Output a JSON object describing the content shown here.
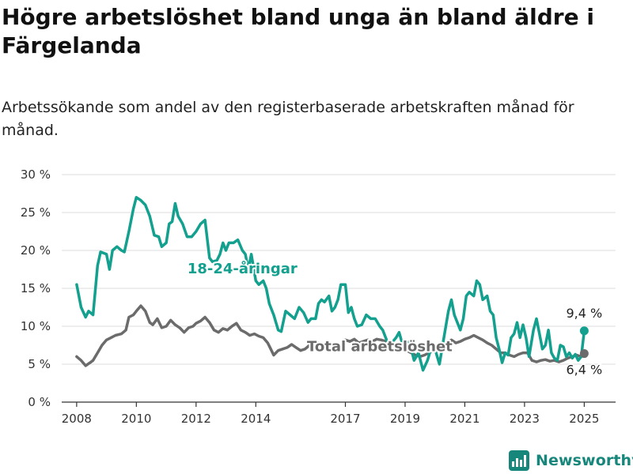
{
  "header": {
    "title": "Högre arbetslöshet bland unga än bland äldre i Färgelanda",
    "subtitle": "Arbetssökande som andel av den registerbaserade arbetskraften månad för månad."
  },
  "brand": {
    "name": "Newsworthy",
    "logo_icon": "bar-chart-logo-icon"
  },
  "colors": {
    "youth": "#13a08e",
    "total": "#6b6b6b",
    "grid": "#dddddd",
    "axis": "#333333"
  },
  "chart_data": {
    "type": "line",
    "title": "Högre arbetslöshet bland unga än bland äldre i Färgelanda",
    "subtitle": "Arbetssökande som andel av den registerbaserade arbetskraften månad för månad.",
    "xlabel": "",
    "ylabel": "",
    "xlim": [
      2007.5,
      2026.05
    ],
    "ylim": [
      0,
      30
    ],
    "yticks": [
      0,
      5,
      10,
      15,
      20,
      25,
      30
    ],
    "ytick_labels": [
      "0 %",
      "5 %",
      "10 %",
      "15 %",
      "20 %",
      "25 %",
      "30 %"
    ],
    "xticks": [
      2008,
      2010,
      2012,
      2014,
      2017,
      2019,
      2021,
      2023,
      2025
    ],
    "xtick_labels": [
      "2008",
      "2010",
      "2012",
      "2014",
      "2017",
      "2019",
      "2021",
      "2023",
      "2025"
    ],
    "grid": true,
    "series": [
      {
        "name": "18-24-åringar",
        "label_position": [
          2013.55,
          17.0
        ],
        "end_label": "9,4 %",
        "points": [
          [
            2008.0,
            15.5
          ],
          [
            2008.15,
            12.5
          ],
          [
            2008.3,
            11.2
          ],
          [
            2008.4,
            12.0
          ],
          [
            2008.55,
            11.5
          ],
          [
            2008.7,
            18.0
          ],
          [
            2008.8,
            19.8
          ],
          [
            2009.0,
            19.5
          ],
          [
            2009.1,
            17.5
          ],
          [
            2009.2,
            20.0
          ],
          [
            2009.35,
            20.5
          ],
          [
            2009.5,
            20.0
          ],
          [
            2009.6,
            19.8
          ],
          [
            2009.75,
            22.5
          ],
          [
            2009.9,
            25.5
          ],
          [
            2010.0,
            27.0
          ],
          [
            2010.15,
            26.6
          ],
          [
            2010.3,
            26.0
          ],
          [
            2010.45,
            24.5
          ],
          [
            2010.6,
            22.0
          ],
          [
            2010.75,
            21.8
          ],
          [
            2010.85,
            20.5
          ],
          [
            2011.0,
            21.0
          ],
          [
            2011.1,
            23.5
          ],
          [
            2011.2,
            23.8
          ],
          [
            2011.3,
            26.2
          ],
          [
            2011.4,
            24.5
          ],
          [
            2011.55,
            23.5
          ],
          [
            2011.7,
            21.8
          ],
          [
            2011.85,
            21.8
          ],
          [
            2012.0,
            22.5
          ],
          [
            2012.15,
            23.5
          ],
          [
            2012.3,
            24.0
          ],
          [
            2012.45,
            19.0
          ],
          [
            2012.55,
            18.5
          ],
          [
            2012.7,
            18.7
          ],
          [
            2012.8,
            19.5
          ],
          [
            2012.9,
            21.0
          ],
          [
            2013.0,
            20.0
          ],
          [
            2013.1,
            21.0
          ],
          [
            2013.25,
            21.0
          ],
          [
            2013.4,
            21.4
          ],
          [
            2013.55,
            20.0
          ],
          [
            2013.65,
            19.5
          ],
          [
            2013.75,
            17.5
          ],
          [
            2013.85,
            19.5
          ],
          [
            2014.0,
            16.0
          ],
          [
            2014.1,
            15.5
          ],
          [
            2014.25,
            16.0
          ],
          [
            2014.35,
            15.0
          ],
          [
            2014.45,
            13.0
          ],
          [
            2014.6,
            11.5
          ],
          [
            2014.75,
            9.5
          ],
          [
            2014.85,
            9.3
          ],
          [
            2015.0,
            12.0
          ],
          [
            2015.15,
            11.5
          ],
          [
            2015.3,
            11.0
          ],
          [
            2015.45,
            12.5
          ],
          [
            2015.6,
            11.8
          ],
          [
            2015.75,
            10.5
          ],
          [
            2015.85,
            11.0
          ],
          [
            2016.0,
            11.0
          ],
          [
            2016.1,
            13.0
          ],
          [
            2016.2,
            13.5
          ],
          [
            2016.3,
            13.2
          ],
          [
            2016.45,
            14.0
          ],
          [
            2016.55,
            12.0
          ],
          [
            2016.65,
            12.5
          ],
          [
            2016.75,
            13.5
          ],
          [
            2016.85,
            15.5
          ],
          [
            2017.0,
            15.5
          ],
          [
            2017.1,
            11.8
          ],
          [
            2017.2,
            12.5
          ],
          [
            2017.3,
            11.0
          ],
          [
            2017.4,
            10.0
          ],
          [
            2017.55,
            10.2
          ],
          [
            2017.7,
            11.5
          ],
          [
            2017.85,
            11.0
          ],
          [
            2018.0,
            11.0
          ],
          [
            2018.15,
            10.0
          ],
          [
            2018.25,
            9.5
          ],
          [
            2018.4,
            8.0
          ],
          [
            2018.55,
            7.8
          ],
          [
            2018.7,
            8.5
          ],
          [
            2018.8,
            9.2
          ],
          [
            2018.9,
            7.8
          ],
          [
            2019.0,
            7.5
          ],
          [
            2019.15,
            8.0
          ],
          [
            2019.3,
            5.5
          ],
          [
            2019.45,
            6.5
          ],
          [
            2019.6,
            4.2
          ],
          [
            2019.75,
            5.5
          ],
          [
            2019.9,
            7.5
          ],
          [
            2020.0,
            7.0
          ],
          [
            2020.15,
            5.0
          ],
          [
            2020.3,
            8.5
          ],
          [
            2020.45,
            12.0
          ],
          [
            2020.55,
            13.5
          ],
          [
            2020.65,
            11.5
          ],
          [
            2020.75,
            10.5
          ],
          [
            2020.85,
            9.5
          ],
          [
            2020.95,
            11.0
          ],
          [
            2021.05,
            14.0
          ],
          [
            2021.15,
            14.5
          ],
          [
            2021.3,
            14.0
          ],
          [
            2021.4,
            16.0
          ],
          [
            2021.5,
            15.5
          ],
          [
            2021.6,
            13.5
          ],
          [
            2021.75,
            14.0
          ],
          [
            2021.85,
            12.0
          ],
          [
            2021.95,
            11.5
          ],
          [
            2022.05,
            8.5
          ],
          [
            2022.15,
            7.0
          ],
          [
            2022.25,
            5.2
          ],
          [
            2022.35,
            6.5
          ],
          [
            2022.45,
            6.2
          ],
          [
            2022.55,
            8.5
          ],
          [
            2022.65,
            9.0
          ],
          [
            2022.75,
            10.5
          ],
          [
            2022.85,
            8.5
          ],
          [
            2022.95,
            10.2
          ],
          [
            2023.05,
            8.5
          ],
          [
            2023.15,
            6.0
          ],
          [
            2023.3,
            9.5
          ],
          [
            2023.4,
            11.0
          ],
          [
            2023.5,
            9.0
          ],
          [
            2023.6,
            7.0
          ],
          [
            2023.7,
            7.5
          ],
          [
            2023.8,
            9.5
          ],
          [
            2023.9,
            6.5
          ],
          [
            2024.0,
            5.8
          ],
          [
            2024.1,
            5.5
          ],
          [
            2024.2,
            7.5
          ],
          [
            2024.3,
            7.3
          ],
          [
            2024.4,
            6.0
          ],
          [
            2024.5,
            6.5
          ],
          [
            2024.6,
            5.8
          ],
          [
            2024.7,
            6.3
          ],
          [
            2024.8,
            5.5
          ],
          [
            2024.9,
            6.0
          ],
          [
            2025.0,
            9.4
          ]
        ]
      },
      {
        "name": "Total arbetslöshet",
        "label_position": [
          2018.15,
          6.7
        ],
        "end_label": "6,4 %",
        "points": [
          [
            2008.0,
            6.0
          ],
          [
            2008.15,
            5.5
          ],
          [
            2008.3,
            4.8
          ],
          [
            2008.45,
            5.2
          ],
          [
            2008.55,
            5.5
          ],
          [
            2008.7,
            6.5
          ],
          [
            2008.85,
            7.5
          ],
          [
            2009.0,
            8.2
          ],
          [
            2009.15,
            8.5
          ],
          [
            2009.3,
            8.8
          ],
          [
            2009.5,
            9.0
          ],
          [
            2009.65,
            9.5
          ],
          [
            2009.75,
            11.2
          ],
          [
            2009.9,
            11.5
          ],
          [
            2010.0,
            12.0
          ],
          [
            2010.15,
            12.7
          ],
          [
            2010.3,
            12.0
          ],
          [
            2010.45,
            10.5
          ],
          [
            2010.55,
            10.2
          ],
          [
            2010.7,
            11.0
          ],
          [
            2010.85,
            9.8
          ],
          [
            2011.0,
            10.0
          ],
          [
            2011.15,
            10.8
          ],
          [
            2011.3,
            10.2
          ],
          [
            2011.45,
            9.8
          ],
          [
            2011.6,
            9.2
          ],
          [
            2011.75,
            9.8
          ],
          [
            2011.9,
            10.0
          ],
          [
            2012.0,
            10.4
          ],
          [
            2012.15,
            10.7
          ],
          [
            2012.3,
            11.2
          ],
          [
            2012.45,
            10.5
          ],
          [
            2012.6,
            9.5
          ],
          [
            2012.75,
            9.2
          ],
          [
            2012.9,
            9.7
          ],
          [
            2013.05,
            9.5
          ],
          [
            2013.2,
            10.0
          ],
          [
            2013.35,
            10.4
          ],
          [
            2013.5,
            9.5
          ],
          [
            2013.65,
            9.2
          ],
          [
            2013.8,
            8.8
          ],
          [
            2013.95,
            9.0
          ],
          [
            2014.1,
            8.7
          ],
          [
            2014.25,
            8.5
          ],
          [
            2014.4,
            7.8
          ],
          [
            2014.5,
            7.0
          ],
          [
            2014.6,
            6.2
          ],
          [
            2014.75,
            6.8
          ],
          [
            2014.9,
            7.0
          ],
          [
            2015.05,
            7.2
          ],
          [
            2015.2,
            7.6
          ],
          [
            2015.35,
            7.2
          ],
          [
            2015.5,
            6.8
          ],
          [
            2015.65,
            7.0
          ],
          [
            2015.8,
            7.5
          ],
          [
            2015.95,
            7.5
          ],
          [
            2016.1,
            7.8
          ],
          [
            2016.25,
            7.5
          ],
          [
            2016.4,
            8.0
          ],
          [
            2016.55,
            7.5
          ],
          [
            2016.7,
            7.2
          ],
          [
            2016.85,
            7.5
          ],
          [
            2017.0,
            8.2
          ],
          [
            2017.15,
            8.0
          ],
          [
            2017.3,
            8.3
          ],
          [
            2017.45,
            7.8
          ],
          [
            2017.6,
            8.0
          ],
          [
            2017.75,
            8.2
          ],
          [
            2017.9,
            8.0
          ],
          [
            2018.05,
            8.3
          ],
          [
            2018.2,
            8.2
          ],
          [
            2018.35,
            8.0
          ],
          [
            2018.5,
            7.8
          ],
          [
            2018.65,
            7.5
          ],
          [
            2018.8,
            7.2
          ],
          [
            2018.9,
            7.0
          ],
          [
            2019.05,
            6.8
          ],
          [
            2019.2,
            6.5
          ],
          [
            2019.35,
            6.2
          ],
          [
            2019.5,
            6.0
          ],
          [
            2019.65,
            6.2
          ],
          [
            2019.8,
            6.5
          ],
          [
            2019.95,
            6.8
          ],
          [
            2020.1,
            7.0
          ],
          [
            2020.25,
            7.5
          ],
          [
            2020.4,
            7.8
          ],
          [
            2020.55,
            8.2
          ],
          [
            2020.7,
            7.8
          ],
          [
            2020.85,
            8.0
          ],
          [
            2021.0,
            8.3
          ],
          [
            2021.15,
            8.5
          ],
          [
            2021.3,
            8.8
          ],
          [
            2021.45,
            8.5
          ],
          [
            2021.6,
            8.2
          ],
          [
            2021.75,
            7.8
          ],
          [
            2021.9,
            7.5
          ],
          [
            2022.05,
            7.0
          ],
          [
            2022.2,
            6.5
          ],
          [
            2022.35,
            6.5
          ],
          [
            2022.5,
            6.2
          ],
          [
            2022.65,
            6.0
          ],
          [
            2022.8,
            6.3
          ],
          [
            2022.95,
            6.5
          ],
          [
            2023.1,
            6.5
          ],
          [
            2023.25,
            5.5
          ],
          [
            2023.4,
            5.3
          ],
          [
            2023.55,
            5.5
          ],
          [
            2023.7,
            5.6
          ],
          [
            2023.85,
            5.4
          ],
          [
            2024.0,
            5.5
          ],
          [
            2024.15,
            5.3
          ],
          [
            2024.3,
            5.5
          ],
          [
            2024.45,
            5.8
          ],
          [
            2024.6,
            6.0
          ],
          [
            2024.75,
            6.2
          ],
          [
            2024.9,
            6.0
          ],
          [
            2025.0,
            6.4
          ]
        ]
      }
    ]
  }
}
